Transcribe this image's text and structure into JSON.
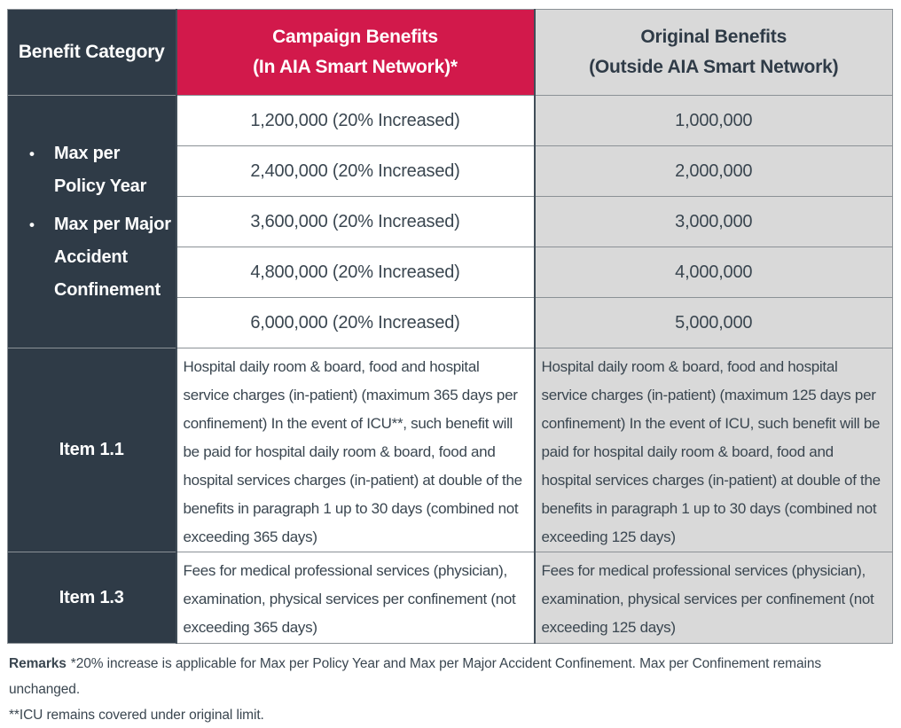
{
  "colors": {
    "navy": "#2F3B47",
    "brand_red": "#D2194B",
    "gray_cell": "#D9D9D9",
    "text": "#3A4650"
  },
  "table": {
    "header": {
      "col1": "Benefit Category",
      "col2_line1": "Campaign Benefits",
      "col2_line2": "(In AIA Smart Network)*",
      "col3_line1": "Original Benefits",
      "col3_line2": "(Outside AIA Smart Network)"
    },
    "category": {
      "bullet_char": "•",
      "bullets": [
        "Max per Policy Year",
        "Max per Major Accident Confinement"
      ]
    },
    "value_rows": [
      {
        "campaign": "1,200,000 (20% Increased)",
        "original": "1,000,000"
      },
      {
        "campaign": "2,400,000 (20% Increased)",
        "original": "2,000,000"
      },
      {
        "campaign": "3,600,000 (20% Increased)",
        "original": "3,000,000"
      },
      {
        "campaign": "4,800,000 (20% Increased)",
        "original": "4,000,000"
      },
      {
        "campaign": "6,000,000 (20% Increased)",
        "original": "5,000,000"
      }
    ],
    "item_rows": [
      {
        "label": "Item 1.1",
        "campaign": "Hospital daily room & board, food and hospital service charges (in-patient) (maximum 365 days per confinement) In the event of ICU**, such benefit will be paid for hospital daily room & board, food and hospital services charges (in-patient) at double of the benefits in paragraph 1 up to 30 days (combined not exceeding 365 days)",
        "original": "Hospital daily room & board, food and hospital service charges (in-patient) (maximum 125 days per confinement) In the event of ICU, such benefit will be paid for hospital daily room & board, food and hospital services charges (in-patient) at double of the benefits in paragraph 1 up to 30 days (combined not exceeding 125 days)"
      },
      {
        "label": "Item 1.3",
        "campaign": "Fees for medical professional services (physician), examination, physical services per confinement (not exceeding 365 days)",
        "original": "Fees for medical professional services (physician), examination, physical services per confinement (not exceeding 125 days)"
      }
    ]
  },
  "remarks": {
    "label": "Remarks",
    "line1": "*20% increase is applicable for Max per Policy Year and Max per Major Accident Confinement. Max per Confinement remains unchanged.",
    "line2": "**ICU remains covered under original limit."
  }
}
